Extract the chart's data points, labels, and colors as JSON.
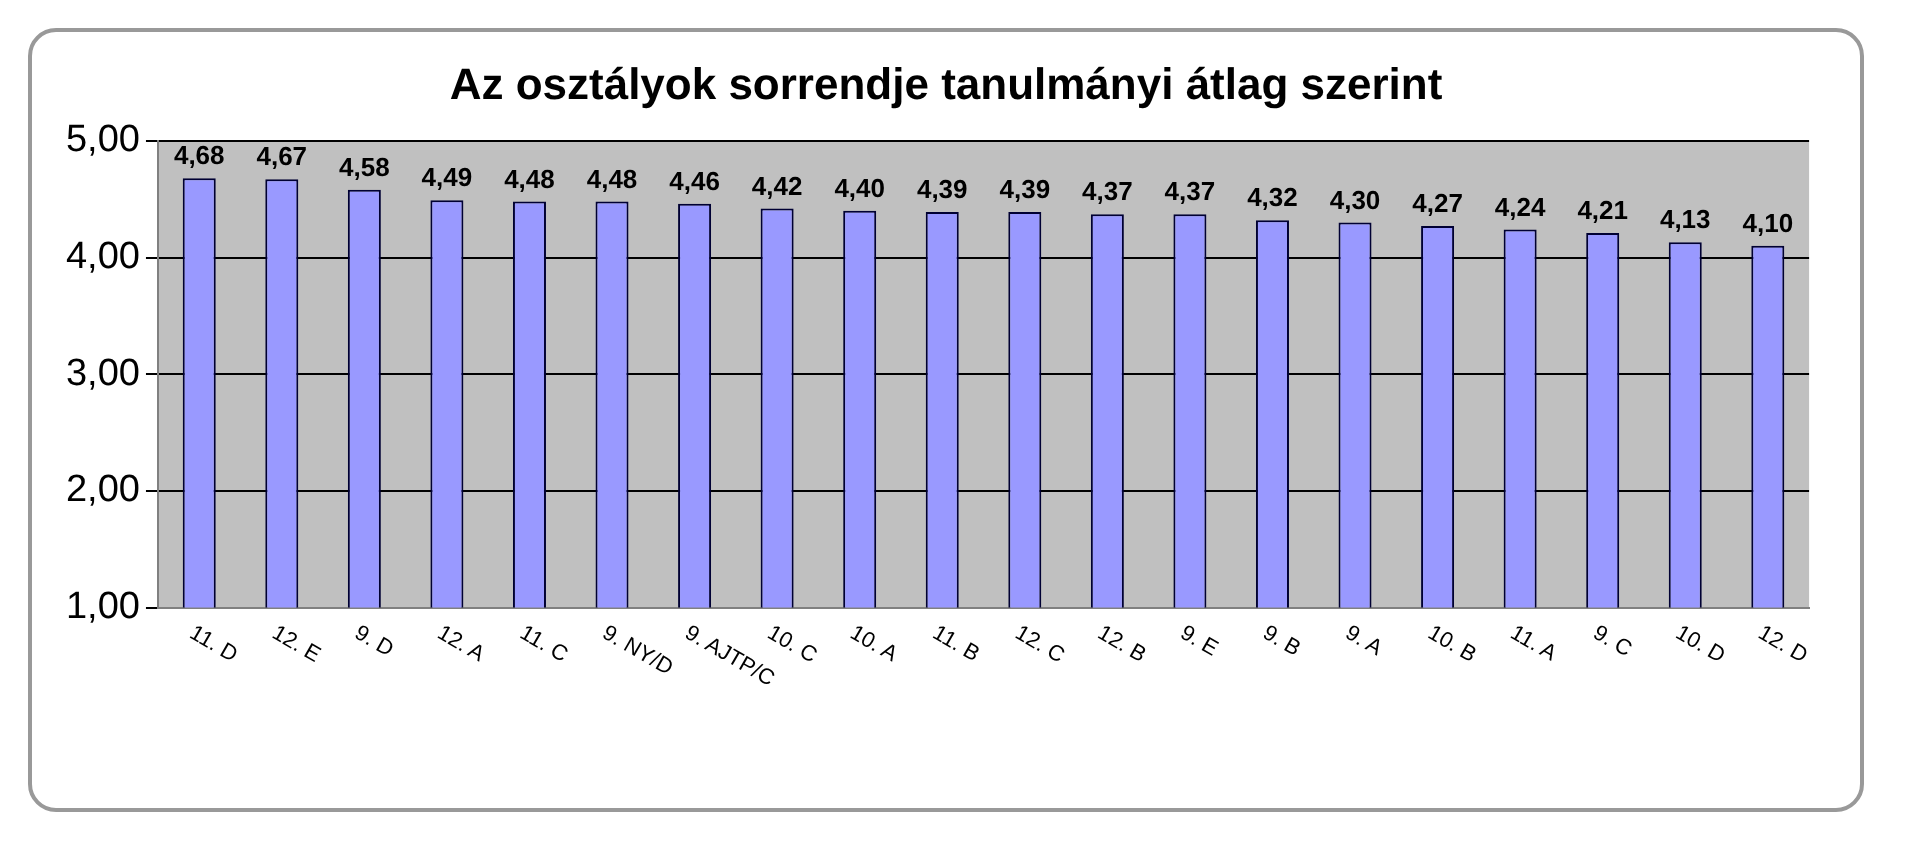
{
  "chart_data": {
    "type": "bar",
    "title": "Az osztályok sorrendje tanulmányi átlag szerint",
    "categories": [
      "11. D",
      "12. E",
      "9. D",
      "12. A",
      "11. C",
      "9. NY/D",
      "9. AJTP/C",
      "10. C",
      "10. A",
      "11. B",
      "12. C",
      "12. B",
      "9. E",
      "9. B",
      "9. A",
      "10. B",
      "11. A",
      "9. C",
      "10. D",
      "12. D"
    ],
    "values": [
      4.68,
      4.67,
      4.58,
      4.49,
      4.48,
      4.48,
      4.46,
      4.42,
      4.4,
      4.39,
      4.39,
      4.37,
      4.37,
      4.32,
      4.3,
      4.27,
      4.24,
      4.21,
      4.13,
      4.1
    ],
    "value_labels": [
      "4,68",
      "4,67",
      "4,58",
      "4,49",
      "4,48",
      "4,48",
      "4,46",
      "4,42",
      "4,40",
      "4,39",
      "4,39",
      "4,37",
      "4,37",
      "4,32",
      "4,30",
      "4,27",
      "4,24",
      "4,21",
      "4,13",
      "4,10"
    ],
    "color": "#9999ff",
    "ylim": [
      1,
      5
    ],
    "yticks": [
      {
        "value": 1,
        "label": "1,00"
      },
      {
        "value": 2,
        "label": "2,00"
      },
      {
        "value": 3,
        "label": "3,00"
      },
      {
        "value": 4,
        "label": "4,00"
      },
      {
        "value": 5,
        "label": "5,00"
      }
    ],
    "grid": "y"
  }
}
